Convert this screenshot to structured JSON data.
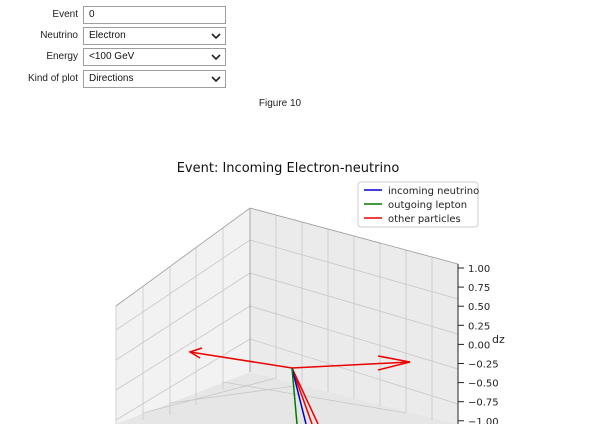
{
  "controls": {
    "event": {
      "label": "Event",
      "value": "0"
    },
    "neutrino": {
      "label": "Neutrino",
      "value": "Electron"
    },
    "energy": {
      "label": "Energy",
      "value": "<100 GeV"
    },
    "plot_kind": {
      "label": "Kind of plot",
      "value": "Directions"
    }
  },
  "figure": {
    "label": "Figure 10"
  },
  "chart_data": {
    "type": "line",
    "title": "Event: Incoming Electron-neutrino",
    "zlabel": "dz",
    "zlim": [
      -1.0,
      1.0
    ],
    "z_ticks": [
      "1.00",
      "0.75",
      "0.50",
      "0.25",
      "0.00",
      "−0.25",
      "−0.50",
      "−0.75",
      "−1.00"
    ],
    "series": [
      {
        "name": "incoming neutrino",
        "color": "#0000cc"
      },
      {
        "name": "outgoing lepton",
        "color": "#007a00"
      },
      {
        "name": "other particles",
        "color": "#ee0000"
      }
    ],
    "legend_position": "top-right",
    "grid": true
  }
}
